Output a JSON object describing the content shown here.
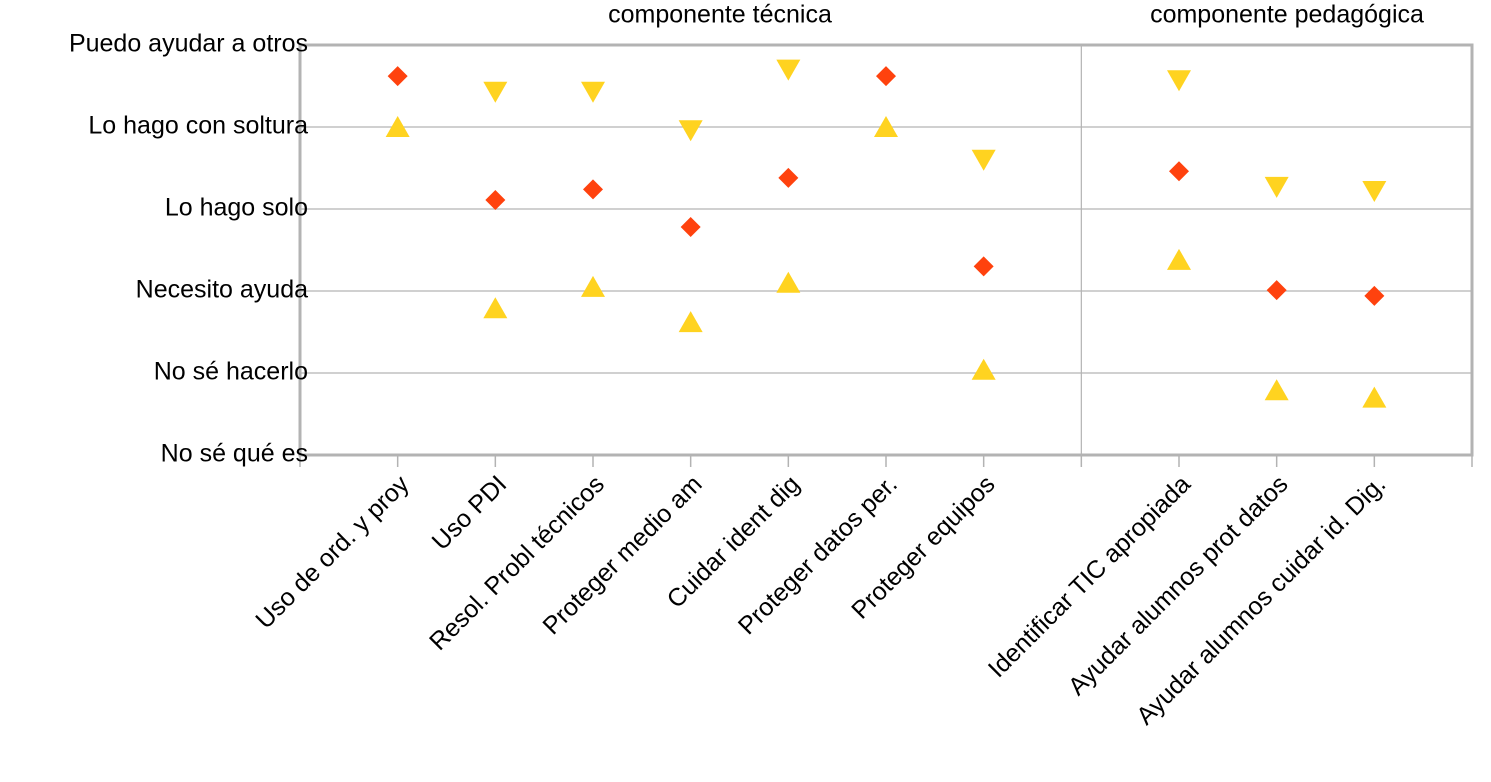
{
  "chart_data": {
    "type": "scatter",
    "annotations": [
      "componente técnica",
      "componente pedagógica"
    ],
    "categories": [
      "Uso de ord. y proy",
      "Uso PDI",
      "Resol. Probl técnicos",
      "Proteger medio am",
      "Cuidar ident dig",
      "Proteger datos per.",
      "Proteger equipos",
      null,
      "Identificar TIC apropiada",
      "Ayudar alumnos prot  datos",
      "Ayudar alumnos cuidar id. Dig."
    ],
    "series": [
      {
        "color": "#ff420e",
        "marker": "diamond",
        "values": [
          4.62,
          3.11,
          3.24,
          2.78,
          3.38,
          4.62,
          2.3,
          null,
          3.46,
          2.01,
          1.94
        ]
      },
      {
        "color": "#ffd320",
        "marker": "triangle-down",
        "values": [
          null,
          4.43,
          4.43,
          3.96,
          4.7,
          null,
          3.6,
          null,
          4.57,
          3.27,
          3.22
        ]
      },
      {
        "color": "#ffd320",
        "marker": "triangle-up",
        "values": [
          4.0,
          1.79,
          2.05,
          1.62,
          2.1,
          4.0,
          1.04,
          null,
          2.38,
          0.79,
          0.7
        ]
      }
    ],
    "ylim": [
      0,
      5
    ],
    "yticks": [
      {
        "value": 0,
        "label": "No sé qué es"
      },
      {
        "value": 1,
        "label": "No sé hacerlo"
      },
      {
        "value": 2,
        "label": "Necesito ayuda"
      },
      {
        "value": 3,
        "label": "Lo hago solo"
      },
      {
        "value": 4,
        "label": "Lo hago con soltura"
      },
      {
        "value": 5,
        "label": "Puedo ayudar a otros"
      }
    ],
    "grid": true
  }
}
